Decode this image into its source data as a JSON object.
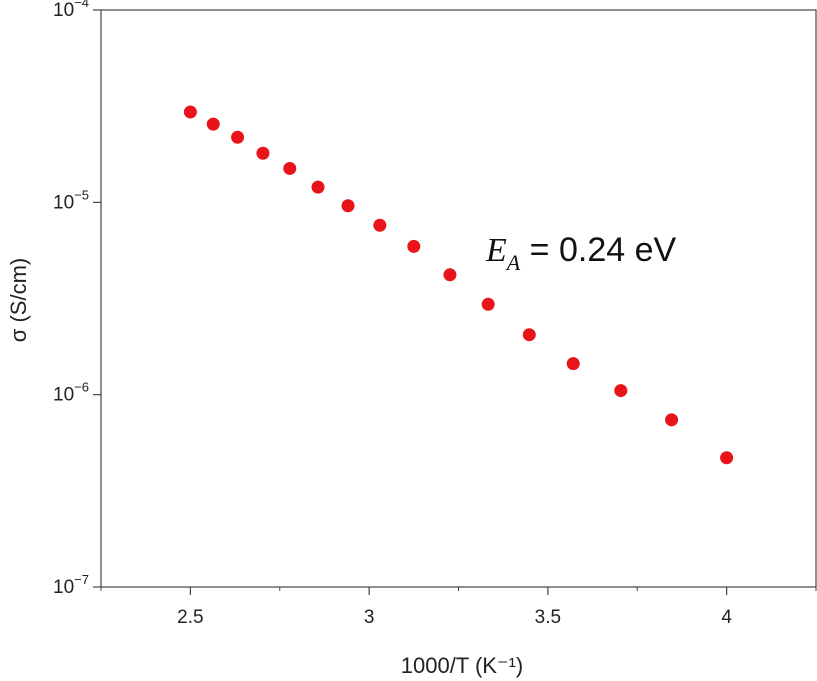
{
  "chart_data": {
    "type": "scatter",
    "xlabel": "1000/T (K⁻¹)",
    "ylabel": "σ (S/cm)",
    "x_ticks": [
      "2.5",
      "3",
      "3.5",
      "4"
    ],
    "y_ticks": [
      {
        "base": "10",
        "exp": "−4",
        "value": 0.0001
      },
      {
        "base": "10",
        "exp": "−5",
        "value": 1e-05
      },
      {
        "base": "10",
        "exp": "−6",
        "value": 1e-06
      },
      {
        "base": "10",
        "exp": "−7",
        "value": 1e-07
      }
    ],
    "xlim": [
      2.25,
      4.25
    ],
    "ylim": [
      1e-07,
      0.0001
    ],
    "yscale": "log",
    "grid": false,
    "marker_color": "#e8141a",
    "annotation": {
      "var": "E",
      "sub": "A",
      "text": " = 0.24 eV"
    },
    "series": [
      {
        "x": [
          2.5,
          2.564,
          2.632,
          2.703,
          2.778,
          2.857,
          2.941,
          3.03,
          3.125,
          3.226,
          3.333,
          3.448,
          3.571,
          3.704,
          3.846,
          4.0
        ],
        "y": [
          2.95e-05,
          2.55e-05,
          2.18e-05,
          1.8e-05,
          1.5e-05,
          1.2e-05,
          9.6e-06,
          7.6e-06,
          5.9e-06,
          4.2e-06,
          2.95e-06,
          2.05e-06,
          1.45e-06,
          1.05e-06,
          7.4e-07,
          4.7e-07
        ]
      }
    ]
  }
}
